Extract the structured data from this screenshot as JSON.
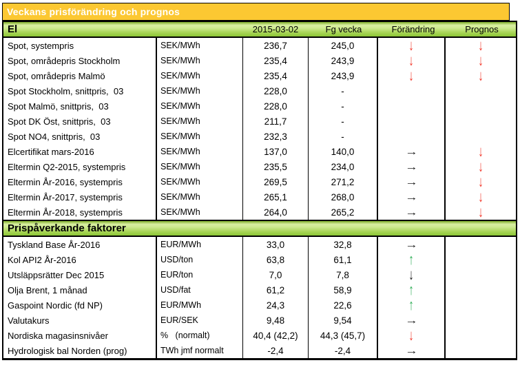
{
  "title": "Veckans prisförändring och prognos",
  "table": {
    "columns": {
      "date": "2015-03-02",
      "prev_week": "Fg vecka",
      "change": "Förändring",
      "forecast": "Prognos"
    }
  },
  "colors": {
    "title_bg": "#FCC832",
    "title_text": "#FFFFFF",
    "section_gradient_top": "#7FAE2A",
    "section_gradient_light": "#D9EFA2",
    "section_gradient_bottom": "#8CC636",
    "arrow_red": "#F23A2E",
    "arrow_green": "#2FAE57",
    "arrow_black": "#1A1A1A"
  },
  "arrows": {
    "down-red": {
      "glyph": "↓",
      "dir": "v",
      "color": "#F23A2E"
    },
    "down-black": {
      "glyph": "↓",
      "dir": "v",
      "color": "#1A1A1A"
    },
    "up-green": {
      "glyph": "↑",
      "dir": "v",
      "color": "#2FAE57"
    },
    "right-black": {
      "glyph": "→",
      "dir": "h",
      "color": "#1A1A1A"
    },
    "none": {
      "glyph": "",
      "dir": "",
      "color": ""
    }
  },
  "sections": [
    {
      "header": "El",
      "rows": [
        {
          "label": "Spot, systempris",
          "unit": "SEK/MWh",
          "value": "236,7",
          "prev": "245,0",
          "change": "down-red",
          "forecast": "down-red"
        },
        {
          "label": "Spot, områdepris Stockholm",
          "unit": "SEK/MWh",
          "value": "235,4",
          "prev": "243,9",
          "change": "down-red",
          "forecast": "down-red"
        },
        {
          "label": "Spot, områdepris Malmö",
          "unit": "SEK/MWh",
          "value": "235,4",
          "prev": "243,9",
          "change": "down-red",
          "forecast": "down-red"
        },
        {
          "label": "Spot Stockholm, snittpris,  03",
          "unit": "SEK/MWh",
          "value": "228,0",
          "prev": "-",
          "change": "none",
          "forecast": "none"
        },
        {
          "label": "Spot Malmö, snittpris,  03",
          "unit": "SEK/MWh",
          "value": "228,0",
          "prev": "-",
          "change": "none",
          "forecast": "none"
        },
        {
          "label": "Spot DK Öst, snittpris,  03",
          "unit": "SEK/MWh",
          "value": "211,7",
          "prev": "-",
          "change": "none",
          "forecast": "none"
        },
        {
          "label": "Spot NO4, snittpris,  03",
          "unit": "SEK/MWh",
          "value": "232,3",
          "prev": "-",
          "change": "none",
          "forecast": "none"
        },
        {
          "label": "Elcertifikat mars-2016",
          "unit": "SEK/MWh",
          "value": "137,0",
          "prev": "140,0",
          "change": "right-black",
          "forecast": "down-red"
        },
        {
          "label": "Eltermin Q2-2015, systempris",
          "unit": "SEK/MWh",
          "value": "235,5",
          "prev": "234,0",
          "change": "right-black",
          "forecast": "down-red"
        },
        {
          "label": "Eltermin År-2016, systempris",
          "unit": "SEK/MWh",
          "value": "269,5",
          "prev": "271,2",
          "change": "right-black",
          "forecast": "down-red"
        },
        {
          "label": "Eltermin År-2017, systempris",
          "unit": "SEK/MWh",
          "value": "265,1",
          "prev": "268,0",
          "change": "right-black",
          "forecast": "down-red"
        },
        {
          "label": "Eltermin År-2018, systempris",
          "unit": "SEK/MWh",
          "value": "264,0",
          "prev": "265,2",
          "change": "right-black",
          "forecast": "down-red"
        }
      ]
    },
    {
      "header": "Prispåverkande faktorer",
      "rows": [
        {
          "label": "Tyskland Base År-2016",
          "unit": "EUR/MWh",
          "value": "33,0",
          "prev": "32,8",
          "change": "right-black",
          "forecast": "none"
        },
        {
          "label": "Kol API2 År-2016",
          "unit": "USD/ton",
          "value": "63,8",
          "prev": "61,1",
          "change": "up-green",
          "forecast": "none"
        },
        {
          "label": "Utsläppsrätter Dec 2015",
          "unit": "EUR/ton",
          "value": "7,0",
          "prev": "7,8",
          "change": "down-black",
          "forecast": "none"
        },
        {
          "label": "Olja Brent, 1 månad",
          "unit": "USD/fat",
          "value": "61,2",
          "prev": "58,9",
          "change": "up-green",
          "forecast": "none"
        },
        {
          "label": "Gaspoint Nordic (fd NP)",
          "unit": "EUR/MWh",
          "value": "24,3",
          "prev": "22,6",
          "change": "up-green",
          "forecast": "none"
        },
        {
          "label": "Valutakurs",
          "unit": "EUR/SEK",
          "value": "9,48",
          "prev": "9,54",
          "change": "right-black",
          "forecast": "none"
        },
        {
          "label": "Nordiska magasinsnivåer",
          "unit": "%   (normalt)",
          "value": "40,4 (42,2)",
          "prev": "44,3 (45,7)",
          "change": "down-red",
          "forecast": "none"
        },
        {
          "label": "Hydrologisk bal Norden (prog)",
          "unit": "TWh jmf normalt",
          "value": "-2,4",
          "prev": "-2,4",
          "change": "right-black",
          "forecast": "none"
        }
      ]
    }
  ]
}
